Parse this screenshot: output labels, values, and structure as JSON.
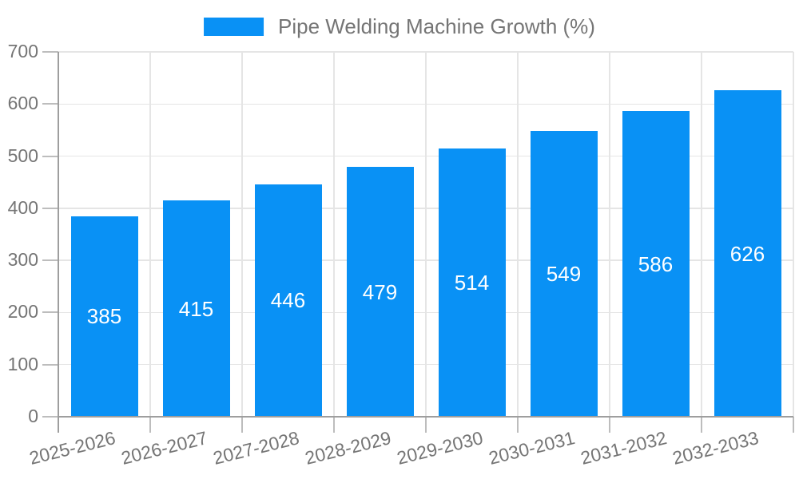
{
  "chart_data": {
    "type": "bar",
    "title": "Pipe Welding Machine Growth (%)",
    "legend": {
      "position": "top",
      "label": "Pipe Welding Machine Growth (%)"
    },
    "categories": [
      "2025-2026",
      "2026-2027",
      "2027-2028",
      "2028-2029",
      "2029-2030",
      "2030-2031",
      "2031-2032",
      "2032-2033"
    ],
    "values": [
      385,
      415,
      446,
      479,
      514,
      549,
      586,
      626
    ],
    "xlabel": "",
    "ylabel": "",
    "ylim": [
      0,
      700
    ],
    "yticks": [
      0,
      100,
      200,
      300,
      400,
      500,
      600,
      700
    ],
    "grid": true,
    "colors": {
      "bar": "#0991f5",
      "bar_value_text": "#ffffff",
      "tick_label": "#757575",
      "legend_text": "#757575",
      "gridline": "#e5e5e5",
      "tick_mark": "#bdbdbd",
      "axis_line": "#9e9e9e"
    }
  }
}
